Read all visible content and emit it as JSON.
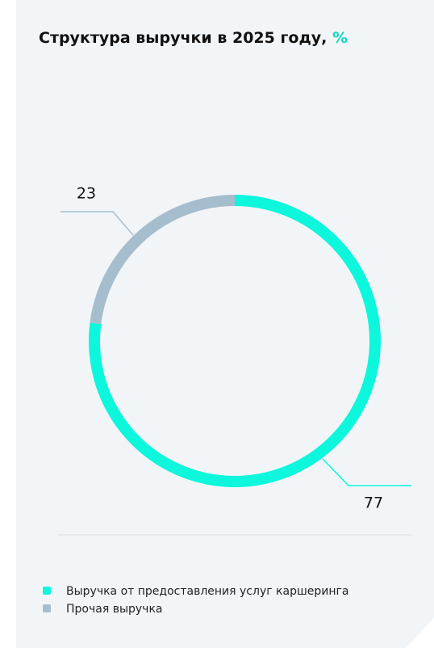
{
  "chart_data": {
    "type": "donut",
    "title": "Структура выручки в 2025 году,",
    "title_unit": "%",
    "categories": [
      "Выручка  от предоставления услуг каршеринга",
      "Прочая выручка"
    ],
    "values": [
      77,
      23
    ],
    "colors": [
      "#0cf7dc",
      "#a6bdcd"
    ]
  }
}
